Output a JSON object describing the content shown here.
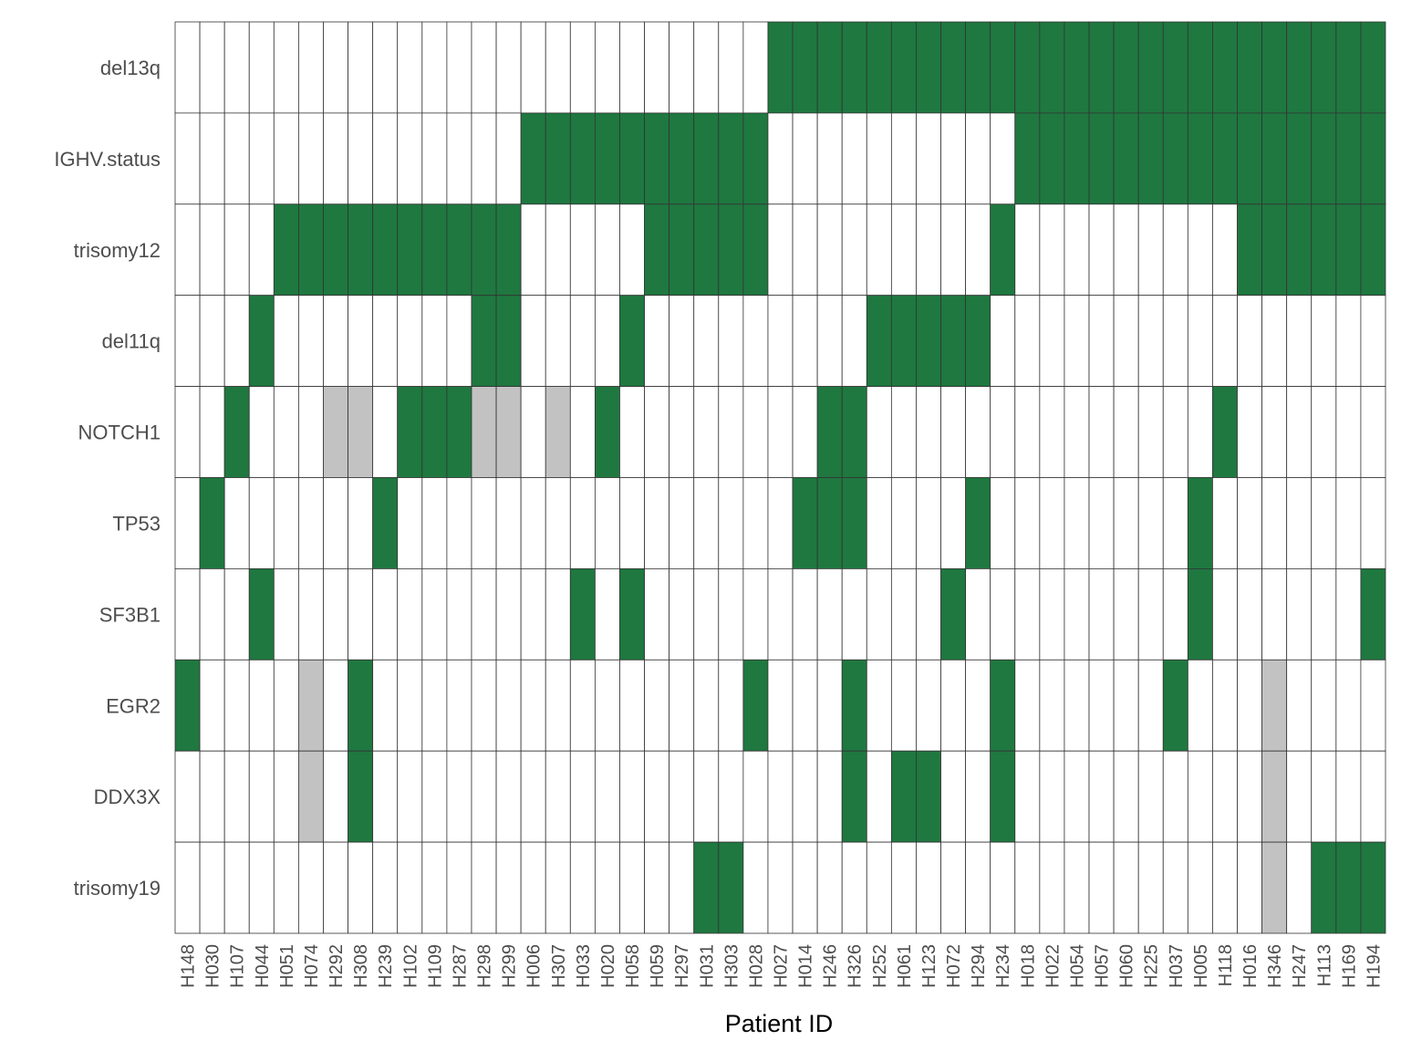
{
  "chart_data": {
    "type": "heatmap",
    "title": "",
    "xlabel": "Patient ID",
    "ylabel": "",
    "grid": true,
    "legend": "none",
    "categories_x": [
      "H148",
      "H030",
      "H107",
      "H044",
      "H051",
      "H074",
      "H292",
      "H308",
      "H239",
      "H102",
      "H109",
      "H287",
      "H298",
      "H299",
      "H006",
      "H307",
      "H033",
      "H020",
      "H058",
      "H059",
      "H297",
      "H031",
      "H303",
      "H028",
      "H027",
      "H014",
      "H246",
      "H326",
      "H252",
      "H061",
      "H123",
      "H072",
      "H294",
      "H234",
      "H018",
      "H022",
      "H054",
      "H057",
      "H060",
      "H225",
      "H037",
      "H005",
      "H118",
      "H016",
      "H346",
      "H247",
      "H113",
      "H169",
      "H194"
    ],
    "categories_y": [
      "del13q",
      "IGHV.status",
      "trisomy12",
      "del11q",
      "NOTCH1",
      "TP53",
      "SF3B1",
      "EGR2",
      "DDX3X",
      "trisomy19"
    ],
    "value_key": {
      "0": "absent",
      "1": "present",
      "2": "missing"
    },
    "colors": {
      "0": "#ffffff",
      "1": "#1f7840",
      "2": "#c2c2c2",
      "grid": "#333333"
    },
    "matrix": [
      [
        0,
        0,
        0,
        0,
        0,
        0,
        0,
        0,
        0,
        0,
        0,
        0,
        0,
        0,
        0,
        0,
        0,
        0,
        0,
        0,
        0,
        0,
        0,
        0,
        1,
        1,
        1,
        1,
        1,
        1,
        1,
        1,
        1,
        1,
        1,
        1,
        1,
        1,
        1,
        1,
        1,
        1,
        1,
        1,
        1,
        1,
        1,
        1,
        1
      ],
      [
        0,
        0,
        0,
        0,
        0,
        0,
        0,
        0,
        0,
        0,
        0,
        0,
        0,
        0,
        1,
        1,
        1,
        1,
        1,
        1,
        1,
        1,
        1,
        1,
        0,
        0,
        0,
        0,
        0,
        0,
        0,
        0,
        0,
        0,
        1,
        1,
        1,
        1,
        1,
        1,
        1,
        1,
        1,
        1,
        1,
        1,
        1,
        1,
        1
      ],
      [
        0,
        0,
        0,
        0,
        1,
        1,
        1,
        1,
        1,
        1,
        1,
        1,
        1,
        1,
        0,
        0,
        0,
        0,
        0,
        1,
        1,
        1,
        1,
        1,
        0,
        0,
        0,
        0,
        0,
        0,
        0,
        0,
        0,
        1,
        0,
        0,
        0,
        0,
        0,
        0,
        0,
        0,
        0,
        1,
        1,
        1,
        1,
        1,
        1
      ],
      [
        0,
        0,
        0,
        1,
        0,
        0,
        0,
        0,
        0,
        0,
        0,
        0,
        1,
        1,
        0,
        0,
        0,
        0,
        1,
        0,
        0,
        0,
        0,
        0,
        0,
        0,
        0,
        0,
        1,
        1,
        1,
        1,
        1,
        0,
        0,
        0,
        0,
        0,
        0,
        0,
        0,
        0,
        0,
        0,
        0,
        0,
        0,
        0,
        0
      ],
      [
        0,
        0,
        1,
        0,
        0,
        0,
        2,
        2,
        0,
        1,
        1,
        1,
        2,
        2,
        0,
        2,
        0,
        1,
        0,
        0,
        0,
        0,
        0,
        0,
        0,
        0,
        1,
        1,
        0,
        0,
        0,
        0,
        0,
        0,
        0,
        0,
        0,
        0,
        0,
        0,
        0,
        0,
        1,
        0,
        0,
        0,
        0,
        0,
        0
      ],
      [
        0,
        1,
        0,
        0,
        0,
        0,
        0,
        0,
        1,
        0,
        0,
        0,
        0,
        0,
        0,
        0,
        0,
        0,
        0,
        0,
        0,
        0,
        0,
        0,
        0,
        1,
        1,
        1,
        0,
        0,
        0,
        0,
        1,
        0,
        0,
        0,
        0,
        0,
        0,
        0,
        0,
        1,
        0,
        0,
        0,
        0,
        0,
        0,
        0
      ],
      [
        0,
        0,
        0,
        1,
        0,
        0,
        0,
        0,
        0,
        0,
        0,
        0,
        0,
        0,
        0,
        0,
        1,
        0,
        1,
        0,
        0,
        0,
        0,
        0,
        0,
        0,
        0,
        0,
        0,
        0,
        0,
        1,
        0,
        0,
        0,
        0,
        0,
        0,
        0,
        0,
        0,
        1,
        0,
        0,
        0,
        0,
        0,
        0,
        1
      ],
      [
        1,
        0,
        0,
        0,
        0,
        2,
        0,
        1,
        0,
        0,
        0,
        0,
        0,
        0,
        0,
        0,
        0,
        0,
        0,
        0,
        0,
        0,
        0,
        1,
        0,
        0,
        0,
        1,
        0,
        0,
        0,
        0,
        0,
        1,
        0,
        0,
        0,
        0,
        0,
        0,
        1,
        0,
        0,
        0,
        2,
        0,
        0,
        0,
        0
      ],
      [
        0,
        0,
        0,
        0,
        0,
        2,
        0,
        1,
        0,
        0,
        0,
        0,
        0,
        0,
        0,
        0,
        0,
        0,
        0,
        0,
        0,
        0,
        0,
        0,
        0,
        0,
        0,
        1,
        0,
        1,
        1,
        0,
        0,
        1,
        0,
        0,
        0,
        0,
        0,
        0,
        0,
        0,
        0,
        0,
        2,
        0,
        0,
        0,
        0
      ],
      [
        0,
        0,
        0,
        0,
        0,
        0,
        0,
        0,
        0,
        0,
        0,
        0,
        0,
        0,
        0,
        0,
        0,
        0,
        0,
        0,
        0,
        1,
        1,
        0,
        0,
        0,
        0,
        0,
        0,
        0,
        0,
        0,
        0,
        0,
        0,
        0,
        0,
        0,
        0,
        0,
        0,
        0,
        0,
        0,
        2,
        0,
        1,
        1,
        1
      ]
    ]
  }
}
